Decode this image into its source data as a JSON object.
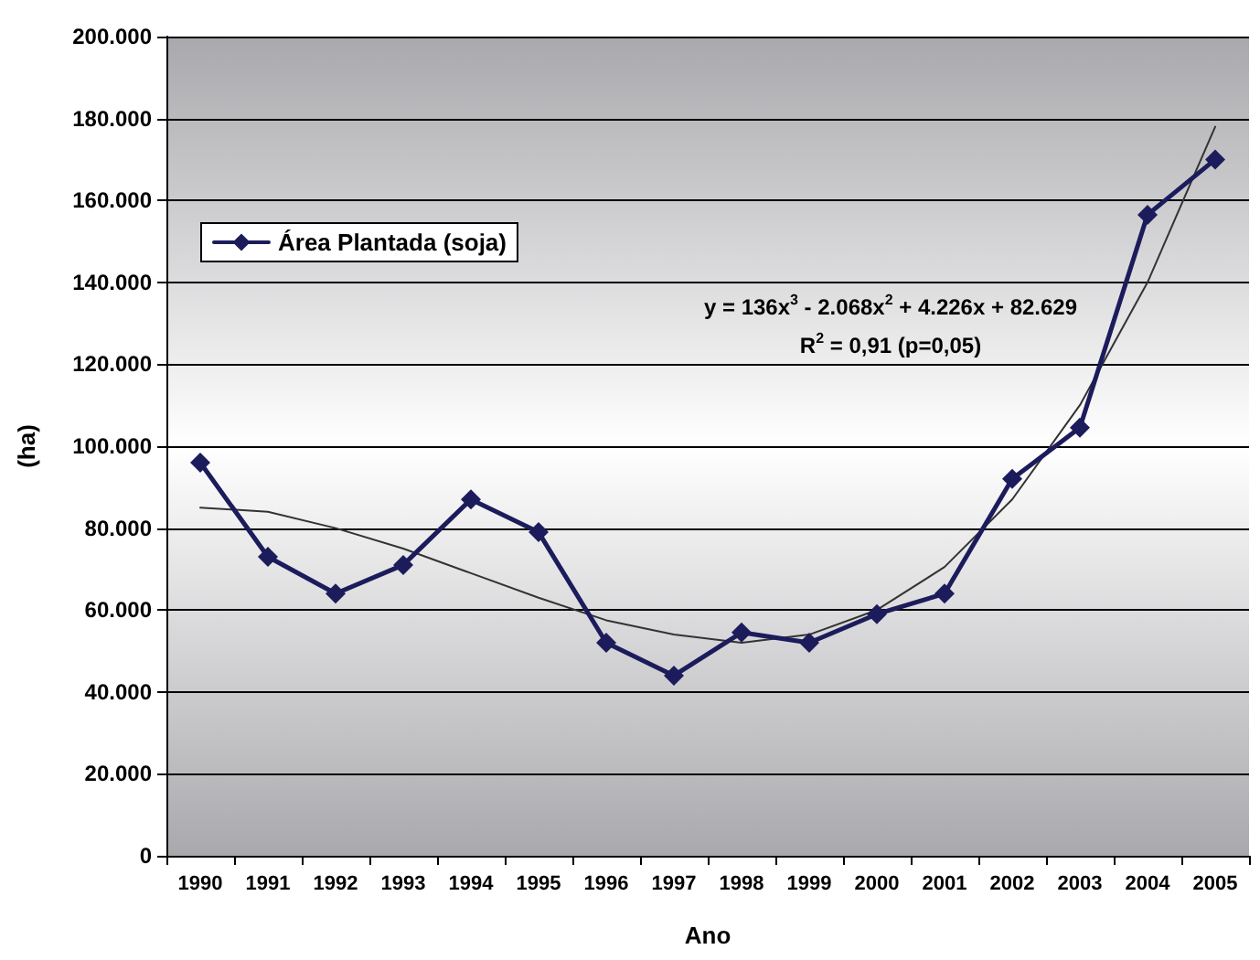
{
  "chart_data": {
    "type": "line",
    "xlabel": "Ano",
    "ylabel": "(ha)",
    "categories": [
      "1990",
      "1991",
      "1992",
      "1993",
      "1994",
      "1995",
      "1996",
      "1997",
      "1998",
      "1999",
      "2000",
      "2001",
      "2002",
      "2003",
      "2004",
      "2005"
    ],
    "series": [
      {
        "name": "Área Plantada (soja)",
        "color": "#1c1c5c",
        "marker": "diamond",
        "values": [
          96000,
          73000,
          64000,
          71000,
          87000,
          79000,
          52000,
          44000,
          54500,
          52000,
          59000,
          64000,
          92000,
          104500,
          156500,
          170000
        ]
      },
      {
        "type": "line",
        "color": "#333333",
        "marker": "none",
        "values": [
          85000,
          84000,
          80000,
          75000,
          69000,
          63000,
          57500,
          54000,
          52000,
          54000,
          60000,
          70500,
          87000,
          110000,
          140000,
          178000
        ]
      }
    ],
    "ylim": [
      0,
      200000
    ],
    "yticks": [
      {
        "value": 0,
        "label": "0"
      },
      {
        "value": 20000,
        "label": "20.000"
      },
      {
        "value": 40000,
        "label": "40.000"
      },
      {
        "value": 60000,
        "label": "60.000"
      },
      {
        "value": 80000,
        "label": "80.000"
      },
      {
        "value": 100000,
        "label": "100.000"
      },
      {
        "value": 120000,
        "label": "120.000"
      },
      {
        "value": 140000,
        "label": "140.000"
      },
      {
        "value": 160000,
        "label": "160.000"
      },
      {
        "value": 180000,
        "label": "180.000"
      },
      {
        "value": 200000,
        "label": "200.000"
      }
    ],
    "grid": "y",
    "legend": "top left",
    "annotations": [
      "y = 136x$^{3}$ - 2.068x$^{2}$ + 4.226x + 82.629",
      "R$^{2}$ = 0,91 (p=0,05)"
    ]
  }
}
